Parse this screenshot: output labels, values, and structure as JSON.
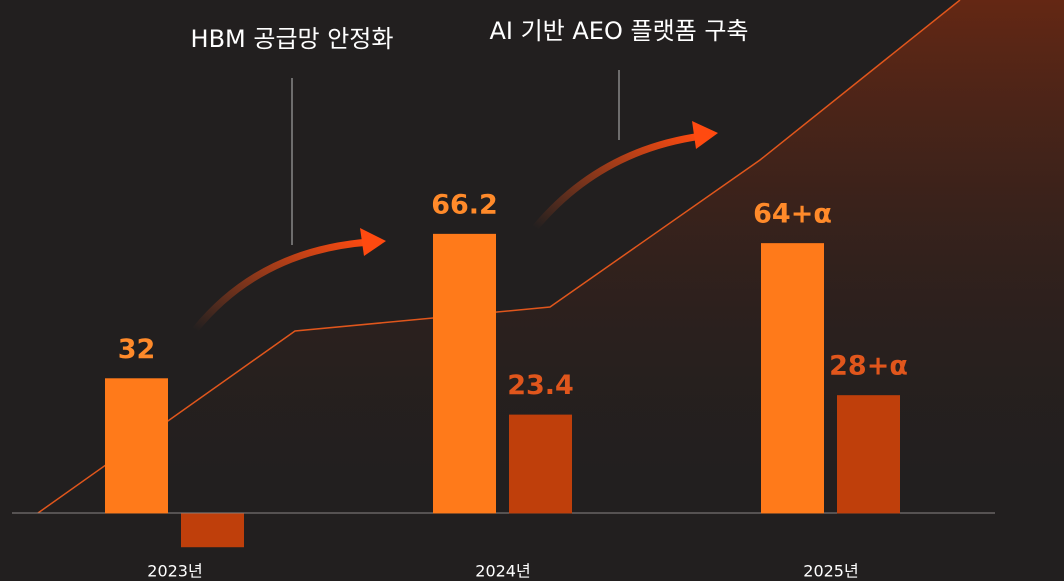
{
  "chart_data": {
    "type": "bar",
    "annotations": [
      "HBM 공급망 안정화",
      "AI 기반 AEO 플랫폼 구축"
    ],
    "categories": [
      "2023년",
      "2024년",
      "2025년"
    ],
    "series": [
      {
        "color": "#ff7a1a",
        "label_color": "#ff8a2a",
        "values": [
          32,
          66.2,
          64
        ],
        "value_labels": [
          "32",
          "66.2",
          "64+α"
        ]
      },
      {
        "color": "#bf3f0b",
        "label_color": "#e0561c",
        "values": [
          -8,
          23.4,
          28
        ],
        "value_labels": [
          null,
          "23.4",
          "28+α"
        ]
      }
    ],
    "ylim": [
      -16,
      105
    ]
  }
}
